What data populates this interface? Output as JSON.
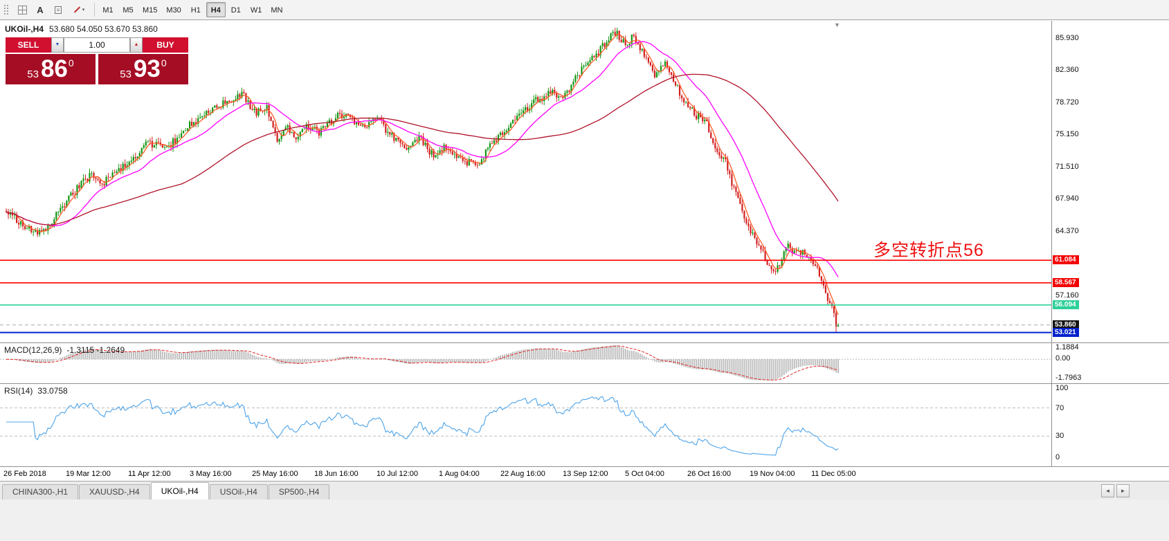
{
  "toolbar": {
    "text_label_glyph": "A",
    "timeframes": [
      "M1",
      "M5",
      "M15",
      "M30",
      "H1",
      "H4",
      "D1",
      "W1",
      "MN"
    ],
    "active_timeframe": "H4"
  },
  "icons": {
    "volume_dropdown": "▼",
    "volume_spin_up": "▲",
    "chart_shift": "▼",
    "tab_scroll_left": "◄",
    "tab_scroll_right": "►",
    "text_frame": "≡",
    "shapes_caret": "▾"
  },
  "chart": {
    "header": {
      "symbol": "UKOil-,H4",
      "ohlc": "53.680 54.050 53.670 53.860"
    },
    "annotation": {
      "text": "多空转折点56",
      "color": "#ee1111"
    },
    "trade_panel": {
      "sell_label": "SELL",
      "buy_label": "BUY",
      "volume": "1.00",
      "sell_price": {
        "prefix": "53",
        "big": "86",
        "sup": "0"
      },
      "buy_price": {
        "prefix": "53",
        "big": "93",
        "sup": "0"
      }
    }
  },
  "macd_panel": {
    "title": "MACD(12,26,9)",
    "values": "-1.3115 -1.2649"
  },
  "rsi_panel": {
    "title": "RSI(14)",
    "value": "33.0758"
  },
  "tabs": {
    "items": [
      "CHINA300-,H1",
      "XAUUSD-,H4",
      "UKOil-,H4",
      "USOil-,H4",
      "SP500-,H4"
    ],
    "active_index": 2
  },
  "chart_data": {
    "type": "candlestick",
    "symbol": "UKOil-",
    "timeframe": "H4",
    "title": "UKOil-,H4",
    "current_ohlc": {
      "open": 53.68,
      "high": 54.05,
      "low": 53.67,
      "close": 53.86
    },
    "y_axis": {
      "min": 52.6,
      "max": 87.6,
      "tick_labels": [
        "85.930",
        "82.360",
        "78.720",
        "75.150",
        "71.510",
        "67.940",
        "64.370",
        "57.160"
      ]
    },
    "x_axis_labels": [
      "26 Feb 2018",
      "19 Mar 12:00",
      "11 Apr 12:00",
      "3 May 16:00",
      "25 May 16:00",
      "18 Jun 16:00",
      "10 Jul 12:00",
      "1 Aug 04:00",
      "22 Aug 16:00",
      "13 Sep 12:00",
      "5 Oct 04:00",
      "26 Oct 16:00",
      "19 Nov 04:00",
      "11 Dec 05:00"
    ],
    "num_bars": 400,
    "price_path_anchors": [
      [
        0,
        66.6
      ],
      [
        0.022,
        64.8
      ],
      [
        0.038,
        63.9
      ],
      [
        0.055,
        65.5
      ],
      [
        0.08,
        68.5
      ],
      [
        0.101,
        70.6
      ],
      [
        0.117,
        69.8
      ],
      [
        0.146,
        72.0
      ],
      [
        0.171,
        74.3
      ],
      [
        0.192,
        73.4
      ],
      [
        0.213,
        75.6
      ],
      [
        0.238,
        77.3
      ],
      [
        0.267,
        79.0
      ],
      [
        0.284,
        79.6
      ],
      [
        0.3,
        77.5
      ],
      [
        0.313,
        78.4
      ],
      [
        0.325,
        74.3
      ],
      [
        0.338,
        75.8
      ],
      [
        0.35,
        74.6
      ],
      [
        0.363,
        76.3
      ],
      [
        0.375,
        75.2
      ],
      [
        0.392,
        76.8
      ],
      [
        0.408,
        77.6
      ],
      [
        0.425,
        75.9
      ],
      [
        0.446,
        77.0
      ],
      [
        0.462,
        75.0
      ],
      [
        0.479,
        73.6
      ],
      [
        0.496,
        74.8
      ],
      [
        0.512,
        72.9
      ],
      [
        0.529,
        73.8
      ],
      [
        0.546,
        72.2
      ],
      [
        0.566,
        71.7
      ],
      [
        0.583,
        74.0
      ],
      [
        0.6,
        75.6
      ],
      [
        0.62,
        77.4
      ],
      [
        0.637,
        78.9
      ],
      [
        0.654,
        79.8
      ],
      [
        0.67,
        79.2
      ],
      [
        0.687,
        81.8
      ],
      [
        0.704,
        83.6
      ],
      [
        0.72,
        85.3
      ],
      [
        0.733,
        86.7
      ],
      [
        0.745,
        84.9
      ],
      [
        0.754,
        86.3
      ],
      [
        0.766,
        84.2
      ],
      [
        0.779,
        81.6
      ],
      [
        0.791,
        83.1
      ],
      [
        0.804,
        80.8
      ],
      [
        0.816,
        78.6
      ],
      [
        0.829,
        77.3
      ],
      [
        0.841,
        76.6
      ],
      [
        0.854,
        73.4
      ],
      [
        0.866,
        71.8
      ],
      [
        0.876,
        68.6
      ],
      [
        0.887,
        66.2
      ],
      [
        0.898,
        63.6
      ],
      [
        0.908,
        62.4
      ],
      [
        0.918,
        60.0
      ],
      [
        0.924,
        59.3
      ],
      [
        0.933,
        61.6
      ],
      [
        0.941,
        62.9
      ],
      [
        0.949,
        61.6
      ],
      [
        0.958,
        62.4
      ],
      [
        0.966,
        61.2
      ],
      [
        0.974,
        60.1
      ],
      [
        0.983,
        58.0
      ],
      [
        0.991,
        55.9
      ],
      [
        1,
        53.95
      ]
    ],
    "candle_colors": {
      "up": "#129612",
      "down": "#d31f1f"
    },
    "moving_averages": [
      {
        "name": "fast-ma",
        "window": 5,
        "color": "#ff5a26"
      },
      {
        "name": "medium-ma",
        "window": 22,
        "color": "#ff00ff"
      },
      {
        "name": "slow-ma",
        "window": 85,
        "color": "#b01228"
      }
    ],
    "levels": [
      {
        "price": 61.084,
        "label": "61.084",
        "color": "#ff0000",
        "width": 1.6,
        "style": "solid",
        "badge_bg": "#f40000"
      },
      {
        "price": 58.567,
        "label": "58.567",
        "color": "#ff0000",
        "width": 1.6,
        "style": "solid",
        "badge_bg": "#f40000"
      },
      {
        "price": 56.094,
        "label": "56.094",
        "color": "#2dd09a",
        "width": 1.6,
        "style": "solid",
        "badge_bg": "#2dd09a"
      },
      {
        "price": 53.86,
        "label": "53.860",
        "color": "#aaaaaa",
        "width": 1,
        "style": "dashed",
        "badge_bg": "#141414"
      },
      {
        "price": 53.021,
        "label": "53.021",
        "color": "#0022cc",
        "width": 2,
        "style": "solid",
        "badge_bg": "#0022cc"
      }
    ],
    "macd": {
      "fast": 12,
      "slow": 26,
      "signal": 9,
      "current_values": [
        -1.3115,
        -1.2649
      ],
      "axis": {
        "max": 1.1884,
        "zero": 0.0,
        "min": -1.7963,
        "labels": [
          "1.1884",
          "0.00",
          "-1.7963"
        ]
      },
      "histogram_color": "#bfbfbf",
      "signal_color": "#e02020"
    },
    "rsi": {
      "period": 14,
      "current_value": 33.0758,
      "axis_labels": [
        "100",
        "70",
        "30",
        "0"
      ],
      "guide_levels": [
        70,
        30
      ],
      "color": "#4da3e8"
    }
  }
}
